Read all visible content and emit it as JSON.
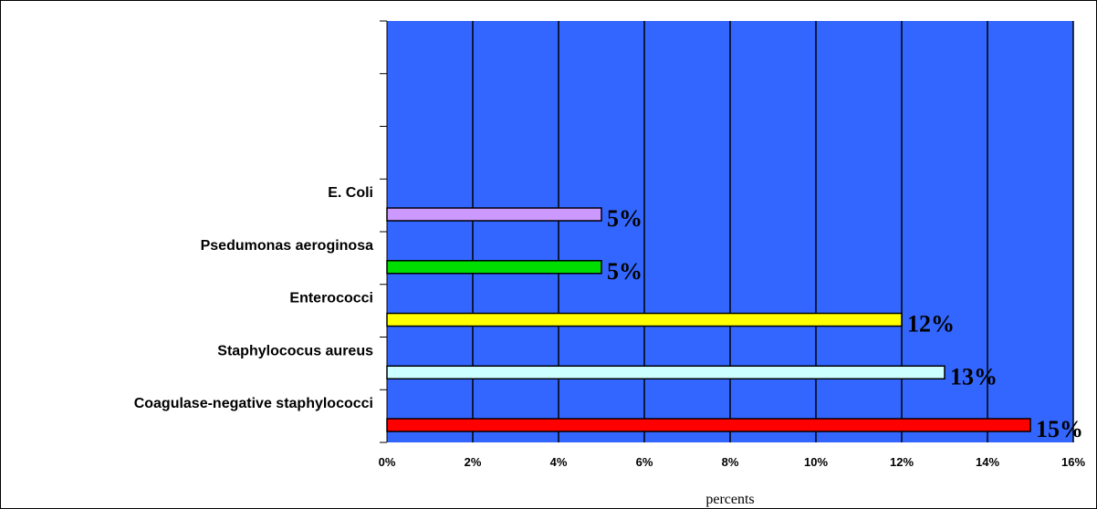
{
  "chart_data": {
    "type": "bar",
    "orientation": "horizontal",
    "title": "",
    "xlabel": "percents",
    "ylabel": "",
    "categories": [
      "Coagulase-negative staphylococci",
      "Staphylococus aureus",
      "Enterococci",
      "Psedumonas aeroginosa",
      "E. Coli"
    ],
    "values": [
      15,
      13,
      12,
      5,
      5
    ],
    "data_labels": [
      "15%",
      "13%",
      "12%",
      "5%",
      "5%"
    ],
    "bar_colors": [
      "#ff0000",
      "#ccffff",
      "#ffff00",
      "#00dd00",
      "#cc99ff"
    ],
    "xlim": [
      0,
      16
    ],
    "x_ticks": [
      0,
      2,
      4,
      6,
      8,
      10,
      12,
      14,
      16
    ],
    "x_tick_labels": [
      "0%",
      "2%",
      "4%",
      "6%",
      "8%",
      "10%",
      "12%",
      "14%",
      "16%"
    ],
    "slots": 8,
    "plot_background": "#3366ff",
    "grid": "vertical",
    "legend": "none"
  }
}
